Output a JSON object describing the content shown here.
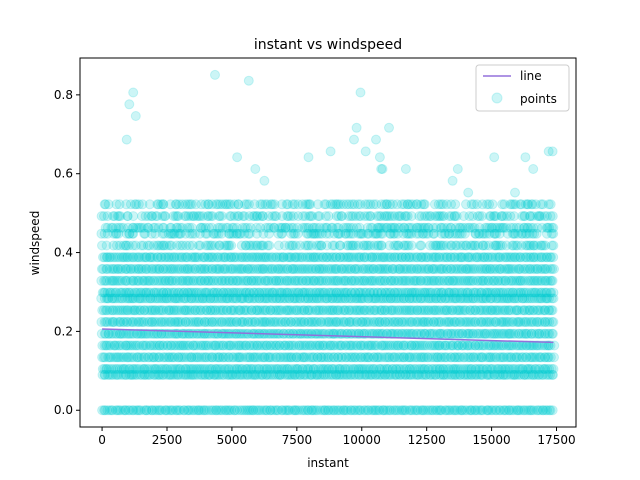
{
  "chart_data": {
    "type": "scatter",
    "title": "instant vs windspeed",
    "xlabel": "instant",
    "ylabel": "windspeed",
    "xlim": [
      -850,
      18250
    ],
    "ylim": [
      -0.0425,
      0.8935
    ],
    "x_ticks": [
      0,
      2500,
      5000,
      7500,
      10000,
      12500,
      15000,
      17500
    ],
    "x_tick_labels": [
      "0",
      "2500",
      "5000",
      "7500",
      "10000",
      "12500",
      "15000",
      "17500"
    ],
    "y_ticks": [
      0.0,
      0.2,
      0.4,
      0.6,
      0.8
    ],
    "y_tick_labels": [
      "0.0",
      "0.2",
      "0.4",
      "0.6",
      "0.8"
    ],
    "grid": false,
    "legend_position": "top-right",
    "x_range_of_points": [
      1,
      17379
    ],
    "dense_windspeed_levels": [
      0.0,
      0.0896,
      0.1045,
      0.1343,
      0.1642,
      0.194,
      0.2239,
      0.2537,
      0.2836,
      0.2985,
      0.3284,
      0.3582,
      0.3881,
      0.4179,
      0.4478,
      0.4627,
      0.4925,
      0.5224
    ],
    "sparse_points": {
      "x": [
        4350,
        5650,
        1200,
        1050,
        9950,
        9800,
        11050,
        1300,
        950,
        8800,
        9700,
        10150,
        10550,
        10700,
        10750,
        5200,
        5900,
        6250,
        7950,
        10800,
        11700,
        13500,
        13700,
        14100,
        15100,
        15900,
        16300,
        16600,
        17200,
        17350
      ],
      "y": [
        0.8507,
        0.8358,
        0.806,
        0.7761,
        0.806,
        0.7164,
        0.7164,
        0.7463,
        0.6866,
        0.6567,
        0.6866,
        0.6567,
        0.6866,
        0.6418,
        0.6119,
        0.6418,
        0.6119,
        0.5821,
        0.6418,
        0.6119,
        0.6119,
        0.5821,
        0.6119,
        0.5522,
        0.6418,
        0.5522,
        0.6418,
        0.6119,
        0.6567,
        0.6567
      ]
    },
    "series": [
      {
        "name": "line",
        "type": "line",
        "color": "#9370db",
        "x": [
          1,
          17379
        ],
        "y": [
          0.206,
          0.172
        ]
      },
      {
        "name": "points",
        "type": "scatter",
        "color": "#00ced1",
        "alpha": 0.2
      }
    ]
  }
}
